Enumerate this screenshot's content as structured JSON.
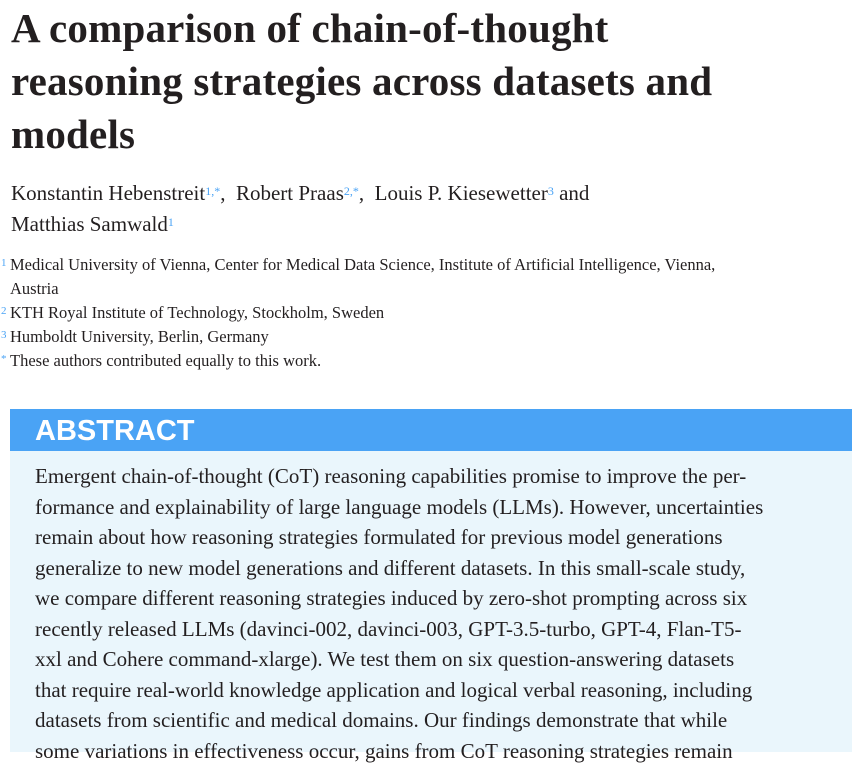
{
  "title_lines": [
    "A comparison of chain-of-thought",
    "reasoning strategies across datasets and",
    "models"
  ],
  "authors": [
    {
      "name": "Konstantin Hebenstreit",
      "sup": "1,*"
    },
    {
      "name": "Robert Praas",
      "sup": "2,*"
    },
    {
      "name": "Louis P. Kiesewetter",
      "sup": "3"
    },
    {
      "name": "Matthias Samwald",
      "sup": "1"
    }
  ],
  "and": "and",
  "affiliations": [
    {
      "sup": "1",
      "lines": [
        "Medical University of Vienna, Center for Medical Data Science, Institute of Artificial Intelligence, Vienna,",
        "Austria"
      ]
    },
    {
      "sup": "2",
      "lines": [
        "KTH Royal Institute of Technology, Stockholm, Sweden"
      ]
    },
    {
      "sup": "3",
      "lines": [
        "Humboldt University, Berlin, Germany"
      ]
    },
    {
      "sup": "*",
      "lines": [
        "These authors contributed equally to this work."
      ]
    }
  ],
  "abstract": {
    "heading": "ABSTRACT",
    "lines": [
      "Emergent chain-of-thought (CoT) reasoning capabilities promise to improve the per-",
      "formance and explainability of large language models (LLMs). However, uncertainties",
      "remain about how reasoning strategies formulated for previous model generations",
      "generalize to new model generations and different datasets. In this small-scale study,",
      "we compare different reasoning strategies induced by zero-shot prompting across six",
      "recently released LLMs (davinci-002, davinci-003, GPT-3.5-turbo, GPT-4, Flan-T5-",
      "xxl and Cohere command-xlarge). We test them on six question-answering datasets",
      "that require real-world knowledge application and logical verbal reasoning, including",
      "datasets from scientific and medical domains. Our findings demonstrate that while",
      "some variations in effectiveness occur, gains from CoT reasoning strategies remain"
    ]
  }
}
